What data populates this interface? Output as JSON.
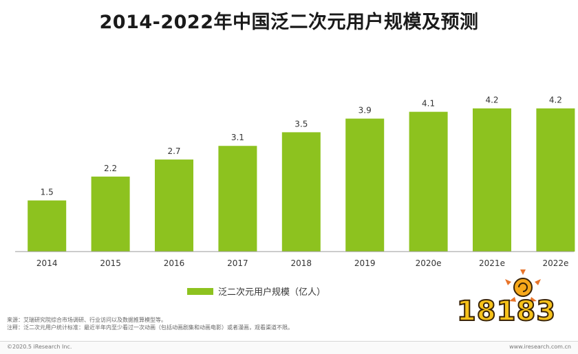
{
  "chart_data": {
    "type": "bar",
    "title": "2014-2022年中国泛二次元用户规模及预测",
    "categories": [
      "2014",
      "2015",
      "2016",
      "2017",
      "2018",
      "2019",
      "2020e",
      "2021e",
      "2022e"
    ],
    "series": [
      {
        "name": "泛二次元用户规模（亿人）",
        "values": [
          1.5,
          2.2,
          2.7,
          3.1,
          3.5,
          3.9,
          4.1,
          4.2,
          4.2
        ]
      }
    ],
    "data_labels": [
      "1.5",
      "2.2",
      "2.7",
      "3.1",
      "3.5",
      "3.9",
      "4.1",
      "4.2",
      "4.2"
    ],
    "ylim": [
      0,
      5
    ],
    "grid": false,
    "legend_position": "bottom",
    "bar_color": "#8dc21f"
  },
  "footnotes": {
    "source": "来源：艾瑞研究院综合市场调研、行业访问以及数据推算模型等。",
    "note": "注释：泛二次元用户统计标准：最近半年内至少看过一次动画（包括动画剧集和动画电影）或者漫画，观看渠道不限。"
  },
  "footer": {
    "copyright": "©2020.5 iResearch Inc.",
    "url": "www.iresearch.com.cn"
  },
  "watermark": {
    "text": "18183"
  }
}
